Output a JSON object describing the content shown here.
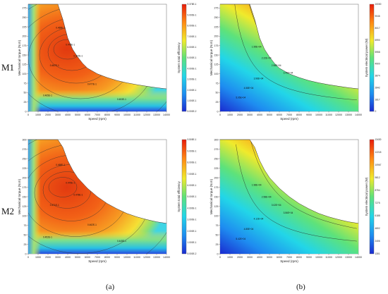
{
  "row_labels": [
    "M1",
    "M2"
  ],
  "col_labels": [
    "(a)",
    "(b)"
  ],
  "chart_data": [
    {
      "type": "heatmap",
      "row": "M1",
      "column": "(a)",
      "xlabel": "Speed (rpm)",
      "ylabel": "Mechanical torque (N.m)",
      "colorbar_label": "System total efficiency",
      "x_ticks": [
        "0",
        "1000",
        "2000",
        "3000",
        "4000",
        "5000",
        "6000",
        "7000",
        "8000",
        "9000",
        "10000",
        "11000",
        "12000",
        "13000",
        "14000"
      ],
      "y_ticks": [
        "0",
        "25",
        "50",
        "75",
        "100",
        "125",
        "150",
        "175",
        "200",
        "225",
        "250",
        "275"
      ],
      "colorbar_ticks": [
        "5.000E-2",
        "1.000E-1",
        "2.000E-1",
        "3.000E-1",
        "4.000E-1",
        "5.000E-1",
        "6.000E-1",
        "7.000E-1",
        "8.000E-1",
        "9.000E-1",
        "9.378E-1"
      ],
      "contour_labels": [
        "0.465E-1",
        "0.476E-1",
        "0.472E-1",
        "0.467E-1",
        "0.477E-1",
        "0.465E-1",
        "0.453E-1"
      ],
      "xlim": [
        0,
        14000
      ],
      "ylim": [
        0,
        285
      ],
      "envelope_speed": [
        0,
        500,
        1000,
        1500,
        2000,
        2500,
        3000,
        3500,
        4000,
        4500,
        5000,
        5500,
        6000,
        7000,
        8000,
        9000,
        10000,
        11000,
        12000,
        13000,
        14000
      ],
      "envelope_torque": [
        285,
        285,
        285,
        285,
        285,
        285,
        285,
        245,
        195,
        165,
        145,
        128,
        115,
        100,
        90,
        82,
        76,
        71,
        67,
        63,
        60
      ]
    },
    {
      "type": "heatmap",
      "row": "M1",
      "column": "(b)",
      "xlabel": "Speed (rpm)",
      "ylabel": "Mechanical torque (N.m)",
      "colorbar_label": "System electrical power (W)",
      "x_ticks": [
        "0",
        "1000",
        "2000",
        "3000",
        "4000",
        "5000",
        "6000",
        "7000",
        "8000",
        "9000",
        "10000",
        "11000",
        "12000",
        "13000",
        "14000"
      ],
      "y_ticks": [
        "0",
        "25",
        "50",
        "75",
        "100",
        "125",
        "150",
        "175",
        "200",
        "225",
        "250",
        "275"
      ],
      "colorbar_ticks": [
        "0",
        "1817",
        "2842",
        "3874",
        "4900",
        "5958",
        "6990",
        "8017",
        "9046",
        "10000"
      ],
      "contour_labels": [
        "1.95E+04",
        "2.22E+04",
        "2.98E+04",
        "3.45E+04",
        "3.98E+04",
        "4.58E+04",
        "5.05E+04"
      ],
      "xlim": [
        0,
        14000
      ],
      "ylim": [
        0,
        285
      ],
      "envelope_speed": [
        0,
        500,
        1000,
        1500,
        2000,
        2500,
        3000,
        3500,
        4000,
        4500,
        5000,
        5500,
        6000,
        7000,
        8000,
        9000,
        10000,
        11000,
        12000,
        13000,
        14000
      ],
      "envelope_torque": [
        285,
        285,
        285,
        285,
        285,
        285,
        285,
        245,
        195,
        165,
        145,
        128,
        115,
        100,
        90,
        82,
        76,
        71,
        67,
        63,
        60
      ]
    },
    {
      "type": "heatmap",
      "row": "M2",
      "column": "(a)",
      "xlabel": "Speed (rpm)",
      "ylabel": "Mechanical torque (N.m)",
      "colorbar_label": "System total efficiency",
      "x_ticks": [
        "0",
        "1000",
        "2000",
        "3000",
        "4000",
        "5000",
        "6000",
        "7000",
        "8000",
        "9000",
        "10000",
        "11000",
        "12000",
        "13000",
        "14000"
      ],
      "y_ticks": [
        "0",
        "25",
        "50",
        "75",
        "100",
        "125",
        "150",
        "175",
        "200",
        "225",
        "250",
        "275",
        "300"
      ],
      "colorbar_ticks": [
        "5.000E-2",
        "1.000E-1",
        "2.000E-1",
        "3.000E-1",
        "4.000E-1",
        "5.000E-1",
        "6.000E-1",
        "7.000E-1",
        "8.000E-1",
        "9.000E-1",
        "9.505E-1"
      ],
      "contour_labels": [
        "0.468E-1",
        "0.475E-1",
        "0.478E-1",
        "0.471E-1",
        "0.462E-1",
        "0.452E-1",
        "0.445E-1"
      ],
      "xlim": [
        0,
        14000
      ],
      "ylim": [
        0,
        300
      ],
      "envelope_speed": [
        0,
        1000,
        2000,
        2500,
        3000,
        3500,
        4000,
        4500,
        5000,
        6000,
        7000,
        8000,
        9000,
        10000,
        11000,
        12000,
        13000,
        14000
      ],
      "envelope_torque": [
        300,
        300,
        300,
        300,
        300,
        280,
        245,
        220,
        200,
        172,
        150,
        132,
        118,
        106,
        97,
        90,
        84,
        80
      ]
    },
    {
      "type": "heatmap",
      "row": "M2",
      "column": "(b)",
      "xlabel": "Speed (rpm)",
      "ylabel": "Mechanical torque (N.m)",
      "colorbar_label": "System electrical power (W)",
      "x_ticks": [
        "0",
        "1000",
        "2000",
        "3000",
        "4000",
        "5000",
        "6000",
        "7000",
        "8000",
        "9000",
        "10000",
        "11000",
        "12000",
        "13000",
        "14000"
      ],
      "y_ticks": [
        "0",
        "25",
        "50",
        "75",
        "100",
        "125",
        "150",
        "175",
        "200",
        "225",
        "250",
        "275",
        "300"
      ],
      "colorbar_ticks": [
        "1301",
        "2406",
        "4802",
        "6188",
        "7275",
        "8754",
        "9812",
        "10967",
        "12218",
        "13430"
      ],
      "contour_labels": [
        "1.98E+04",
        "2.58E+04",
        "3.02E+04",
        "3.56E+04",
        "4.12E+04",
        "4.85E+04",
        "5.42E+04"
      ],
      "xlim": [
        0,
        14000
      ],
      "ylim": [
        0,
        300
      ],
      "envelope_speed": [
        0,
        1000,
        2000,
        2500,
        3000,
        3500,
        4000,
        4500,
        5000,
        6000,
        7000,
        8000,
        9000,
        10000,
        11000,
        12000,
        13000,
        14000
      ],
      "envelope_torque": [
        300,
        300,
        300,
        300,
        300,
        280,
        245,
        220,
        200,
        172,
        150,
        132,
        118,
        106,
        97,
        90,
        84,
        80
      ]
    }
  ]
}
